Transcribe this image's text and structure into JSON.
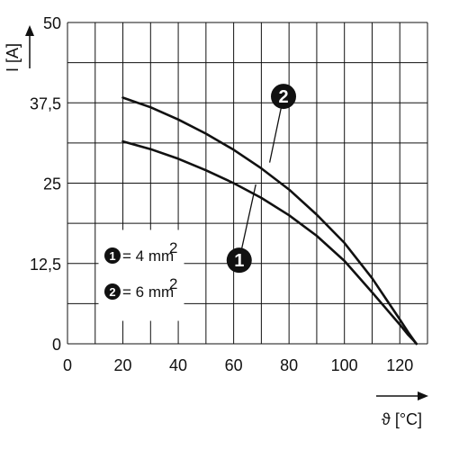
{
  "chart_data": {
    "type": "line",
    "xlabel": "ϑ [°C]",
    "ylabel": "I [A]",
    "xlim": [
      0,
      130
    ],
    "ylim": [
      0,
      50
    ],
    "x_ticks": [
      "0",
      "20",
      "40",
      "60",
      "80",
      "100",
      "120"
    ],
    "y_ticks": [
      "0",
      "12,5",
      "25",
      "37,5",
      "50"
    ],
    "grid": true,
    "series": [
      {
        "name": "1",
        "x": [
          20,
          30,
          40,
          50,
          60,
          70,
          80,
          90,
          100,
          110,
          115,
          120,
          123,
          125,
          126
        ],
        "y": [
          31.5,
          30.3,
          28.8,
          27.0,
          25.0,
          22.7,
          20.0,
          16.8,
          12.9,
          8.0,
          5.5,
          3.0,
          1.4,
          0.5,
          0
        ],
        "label": "1"
      },
      {
        "name": "2",
        "x": [
          20,
          30,
          40,
          50,
          60,
          70,
          80,
          90,
          100,
          110,
          115,
          120,
          123,
          125,
          126
        ],
        "y": [
          38.3,
          36.8,
          34.9,
          32.7,
          30.2,
          27.3,
          24.0,
          20.1,
          15.7,
          10.2,
          7.0,
          3.8,
          1.8,
          0.6,
          0
        ],
        "label": "2"
      }
    ],
    "legend": {
      "position": "left-middle",
      "entries": [
        {
          "marker": "1",
          "text": "= 4 mm",
          "sup": "2"
        },
        {
          "marker": "2",
          "text": "= 6 mm",
          "sup": "2"
        }
      ]
    },
    "callouts": [
      {
        "marker": "1",
        "target_x": 68,
        "target_y": 24.8,
        "badge_x": 62,
        "badge_y": 13.0
      },
      {
        "marker": "2",
        "target_x": 73,
        "target_y": 28.2,
        "badge_x": 78,
        "badge_y": 38.5
      }
    ]
  }
}
